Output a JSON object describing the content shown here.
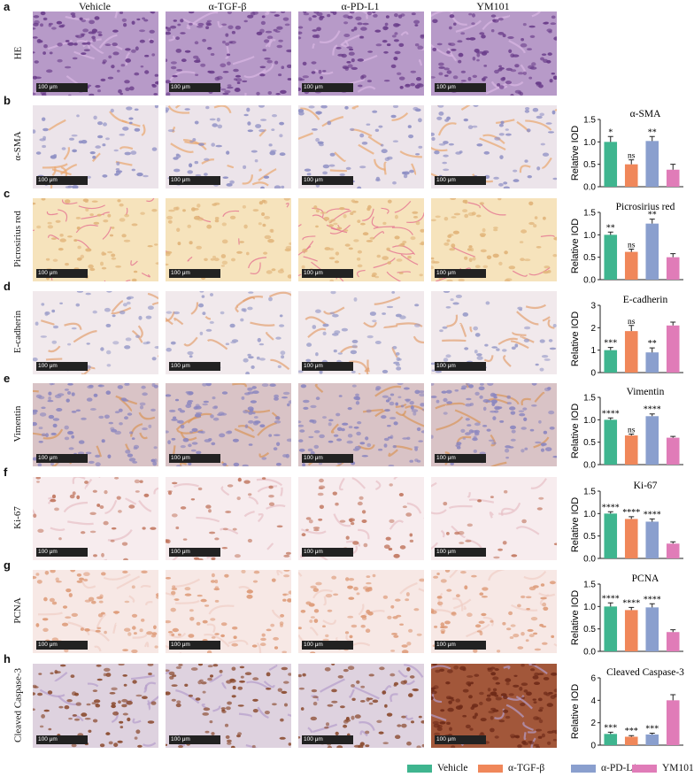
{
  "columns": [
    "Vehicle",
    "α-TGF-β",
    "α-PD-L1",
    "YM101"
  ],
  "scale_bar": "100 μm",
  "rows": [
    {
      "letter": "a",
      "label": "HE",
      "bg": "#b79ac8",
      "dot": "#6a3d8a",
      "fiber": "#d9b6e2",
      "dens": 1.0
    },
    {
      "letter": "b",
      "label": "α-SMA",
      "bg": "#ece4ea",
      "dot": "#8e8fc4",
      "fiber": "#e9a66d",
      "dens": 0.5
    },
    {
      "letter": "c",
      "label": "Picrosirius red",
      "bg": "#f6e3bc",
      "dot": "#e1b47a",
      "fiber": "#e2628a",
      "dens": 0.6
    },
    {
      "letter": "d",
      "label": "E-cadherin",
      "bg": "#f1e9ec",
      "dot": "#9a9cc9",
      "fiber": "#e3a070",
      "dens": 0.4
    },
    {
      "letter": "e",
      "label": "Vimentin",
      "bg": "#d9c3c6",
      "dot": "#8b86bf",
      "fiber": "#d9955a",
      "dens": 0.9
    },
    {
      "letter": "f",
      "label": "Ki-67",
      "bg": "#f7ecee",
      "dot": "#c27962",
      "fiber": "#e7c0c6",
      "dens": 0.35
    },
    {
      "letter": "g",
      "label": "PCNA",
      "bg": "#f7e8e5",
      "dot": "#dd9a77",
      "fiber": "#f0cfc6",
      "dens": 0.6
    },
    {
      "letter": "h",
      "label": "Cleaved Caspase-3",
      "bg": "#ded2df",
      "dot": "#8a4a2e",
      "fiber": "#b59cca",
      "dens": 0.7
    }
  ],
  "legend": [
    {
      "name": "Vehicle",
      "color": "#3fb58f"
    },
    {
      "name": "α-TGF-β",
      "color": "#f0875a"
    },
    {
      "name": "α-PD-L1",
      "color": "#8a9fce"
    },
    {
      "name": "YM101",
      "color": "#e07cb8"
    }
  ],
  "chart_data": [
    {
      "type": "bar",
      "title": "α-SMA",
      "ylabel": "Relative IOD",
      "ylim": [
        0,
        1.5
      ],
      "yticks": [
        "0.0",
        "0.5",
        "1.0",
        "1.5"
      ],
      "categories": [
        "Vehicle",
        "α-TGF-β",
        "α-PD-L1",
        "YM101"
      ],
      "values": [
        1.0,
        0.5,
        1.02,
        0.38
      ],
      "errors": [
        0.12,
        0.1,
        0.1,
        0.12
      ],
      "annotations": [
        "*",
        "ns",
        "**",
        ""
      ]
    },
    {
      "type": "bar",
      "title": "Picrosirius red",
      "ylabel": "Relative IOD",
      "ylim": [
        0,
        1.5
      ],
      "yticks": [
        "0.0",
        "0.5",
        "1.0",
        "1.5"
      ],
      "categories": [
        "Vehicle",
        "α-TGF-β",
        "α-PD-L1",
        "YM101"
      ],
      "values": [
        1.0,
        0.62,
        1.25,
        0.5
      ],
      "errors": [
        0.06,
        0.06,
        0.1,
        0.08
      ],
      "annotations": [
        "**",
        "ns",
        "**",
        ""
      ]
    },
    {
      "type": "bar",
      "title": "E-cadherin",
      "ylabel": "Relative IOD",
      "ylim": [
        0,
        3
      ],
      "yticks": [
        "0",
        "1",
        "2",
        "3"
      ],
      "categories": [
        "Vehicle",
        "α-TGF-β",
        "α-PD-L1",
        "YM101"
      ],
      "values": [
        1.0,
        1.85,
        0.9,
        2.1
      ],
      "errors": [
        0.12,
        0.25,
        0.2,
        0.15
      ],
      "annotations": [
        "***",
        "ns",
        "**",
        ""
      ]
    },
    {
      "type": "bar",
      "title": "Vimentin",
      "ylabel": "Relative IOD",
      "ylim": [
        0,
        1.5
      ],
      "yticks": [
        "0.0",
        "0.5",
        "1.0",
        "1.5"
      ],
      "categories": [
        "Vehicle",
        "α-TGF-β",
        "α-PD-L1",
        "YM101"
      ],
      "values": [
        1.0,
        0.65,
        1.08,
        0.6
      ],
      "errors": [
        0.04,
        0.03,
        0.05,
        0.03
      ],
      "annotations": [
        "****",
        "ns",
        "****",
        ""
      ]
    },
    {
      "type": "bar",
      "title": "Ki-67",
      "ylabel": "Relative IOD",
      "ylim": [
        0,
        1.5
      ],
      "yticks": [
        "0.0",
        "0.5",
        "1.0",
        "1.5"
      ],
      "categories": [
        "Vehicle",
        "α-TGF-β",
        "α-PD-L1",
        "YM101"
      ],
      "values": [
        1.0,
        0.88,
        0.82,
        0.33
      ],
      "errors": [
        0.04,
        0.05,
        0.06,
        0.04
      ],
      "annotations": [
        "****",
        "****",
        "****",
        ""
      ]
    },
    {
      "type": "bar",
      "title": "PCNA",
      "ylabel": "Relative IOD",
      "ylim": [
        0,
        1.5
      ],
      "yticks": [
        "0.0",
        "0.5",
        "1.0",
        "1.5"
      ],
      "categories": [
        "Vehicle",
        "α-TGF-β",
        "α-PD-L1",
        "YM101"
      ],
      "values": [
        1.0,
        0.92,
        0.98,
        0.43
      ],
      "errors": [
        0.08,
        0.06,
        0.08,
        0.05
      ],
      "annotations": [
        "****",
        "****",
        "****",
        ""
      ]
    },
    {
      "type": "bar",
      "title": "Cleaved Caspase-3",
      "ylabel": "Relative IOD",
      "ylim": [
        0,
        6
      ],
      "yticks": [
        "0",
        "2",
        "4",
        "6"
      ],
      "categories": [
        "Vehicle",
        "α-TGF-β",
        "α-PD-L1",
        "YM101"
      ],
      "values": [
        1.0,
        0.75,
        0.95,
        4.0
      ],
      "errors": [
        0.15,
        0.1,
        0.12,
        0.5
      ],
      "annotations": [
        "***",
        "***",
        "***",
        ""
      ]
    }
  ]
}
